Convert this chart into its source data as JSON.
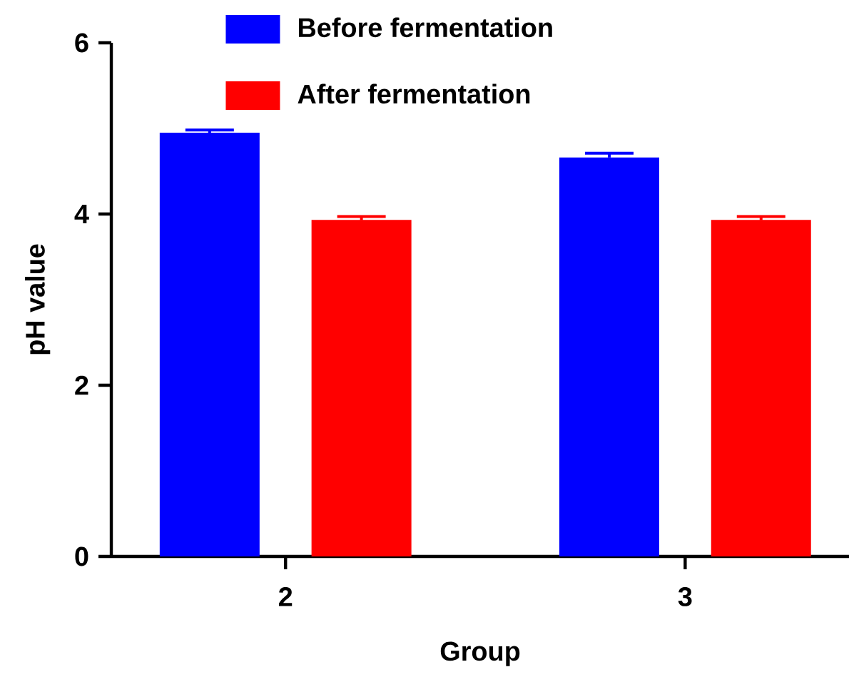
{
  "chart_data": {
    "type": "bar",
    "xlabel": "Group",
    "ylabel": "pH value",
    "categories": [
      "2",
      "3"
    ],
    "series": [
      {
        "name": "Before fermentation",
        "color": "#0000ff",
        "values": [
          4.95,
          4.66
        ],
        "errors": [
          0.03,
          0.05
        ]
      },
      {
        "name": "After fermentation",
        "color": "#ff0000",
        "values": [
          3.93,
          3.93
        ],
        "errors": [
          0.04,
          0.04
        ]
      }
    ],
    "ylim": [
      0,
      6
    ],
    "yticks": [
      0,
      2,
      4,
      6
    ],
    "legend": "top"
  }
}
